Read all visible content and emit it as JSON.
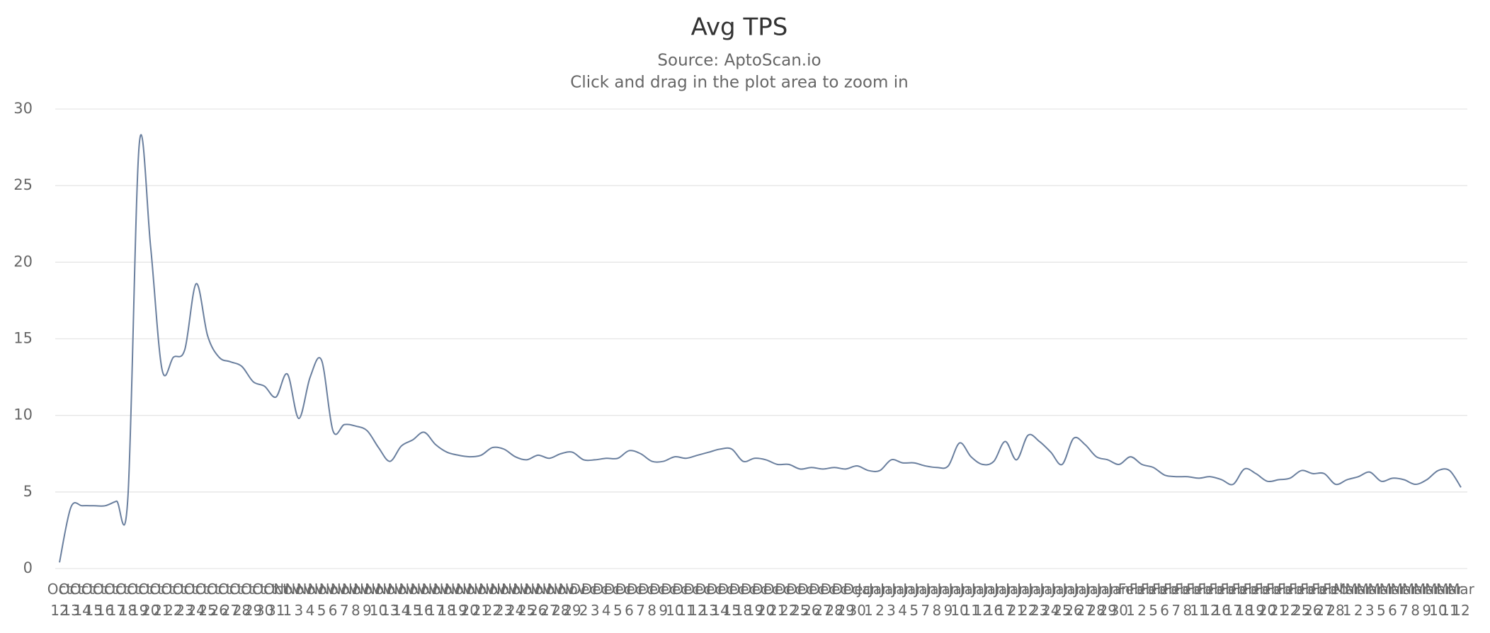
{
  "chart_data": {
    "type": "line",
    "title": "Avg TPS",
    "subtitle": "Source: AptoScan.io",
    "annotation": "Click and drag in the plot area to zoom in",
    "categories": [
      "Oct 12",
      "Oct 13",
      "Oct 14",
      "Oct 15",
      "Oct 16",
      "Oct 17",
      "Oct 18",
      "Oct 19",
      "Oct 20",
      "Oct 21",
      "Oct 22",
      "Oct 23",
      "Oct 24",
      "Oct 25",
      "Oct 26",
      "Oct 27",
      "Oct 28",
      "Oct 29",
      "Oct 30",
      "Oct 31",
      "Nov 1",
      "Nov 3",
      "Nov 4",
      "Nov 5",
      "Nov 6",
      "Nov 7",
      "Nov 8",
      "Nov 9",
      "Nov 10",
      "Nov 13",
      "Nov 14",
      "Nov 15",
      "Nov 16",
      "Nov 17",
      "Nov 18",
      "Nov 19",
      "Nov 20",
      "Nov 21",
      "Nov 22",
      "Nov 23",
      "Nov 24",
      "Nov 25",
      "Nov 26",
      "Nov 27",
      "Nov 28",
      "Nov 29",
      "Dec 2",
      "Dec 3",
      "Dec 4",
      "Dec 5",
      "Dec 6",
      "Dec 7",
      "Dec 8",
      "Dec 9",
      "Dec 10",
      "Dec 11",
      "Dec 12",
      "Dec 13",
      "Dec 14",
      "Dec 15",
      "Dec 18",
      "Dec 19",
      "Dec 20",
      "Dec 21",
      "Dec 22",
      "Dec 25",
      "Dec 26",
      "Dec 27",
      "Dec 28",
      "Dec 29",
      "Dec 30",
      "Jan 1",
      "Jan 2",
      "Jan 3",
      "Jan 4",
      "Jan 5",
      "Jan 7",
      "Jan 8",
      "Jan 9",
      "Jan 10",
      "Jan 11",
      "Jan 12",
      "Jan 16",
      "Jan 17",
      "Jan 21",
      "Jan 22",
      "Jan 23",
      "Jan 24",
      "Jan 25",
      "Jan 26",
      "Jan 27",
      "Jan 28",
      "Jan 29",
      "Jan 30",
      "Feb 1",
      "Feb 2",
      "Feb 5",
      "Feb 6",
      "Feb 7",
      "Feb 8",
      "Feb 11",
      "Feb 12",
      "Feb 16",
      "Feb 17",
      "Feb 18",
      "Feb 19",
      "Feb 20",
      "Feb 21",
      "Feb 22",
      "Feb 25",
      "Feb 26",
      "Feb 27",
      "Feb 28",
      "Mar 1",
      "Mar 2",
      "Mar 3",
      "Mar 5",
      "Mar 6",
      "Mar 7",
      "Mar 8",
      "Mar 9",
      "Mar 10",
      "Mar 11",
      "Mar 12"
    ],
    "series": [
      {
        "name": "Avg TPS",
        "color": "#6a7f9e",
        "values": [
          0.4,
          4,
          4.1,
          4.1,
          4.1,
          4.4,
          4.6,
          27.7,
          21,
          13,
          13.8,
          14.3,
          18.6,
          15.2,
          13.8,
          13.5,
          13.2,
          12.2,
          11.9,
          11.2,
          12.7,
          9.8,
          12.5,
          13.6,
          9.0,
          9.4,
          9.3,
          9.0,
          7.9,
          7.0,
          8.0,
          8.4,
          8.9,
          8.1,
          7.6,
          7.4,
          7.3,
          7.4,
          7.9,
          7.8,
          7.3,
          7.1,
          7.4,
          7.2,
          7.5,
          7.6,
          7.1,
          7.1,
          7.2,
          7.2,
          7.7,
          7.5,
          7.0,
          7.0,
          7.3,
          7.2,
          7.4,
          7.6,
          7.8,
          7.8,
          7.0,
          7.2,
          7.1,
          6.8,
          6.8,
          6.5,
          6.6,
          6.5,
          6.6,
          6.5,
          6.7,
          6.4,
          6.4,
          7.1,
          6.9,
          6.9,
          6.7,
          6.6,
          6.7,
          8.2,
          7.3,
          6.8,
          7.0,
          8.3,
          7.1,
          8.7,
          8.3,
          7.6,
          6.8,
          8.5,
          8.1,
          7.3,
          7.1,
          6.8,
          7.3,
          6.8,
          6.6,
          6.1,
          6.0,
          6.0,
          5.9,
          6.0,
          5.8,
          5.5,
          6.5,
          6.2,
          5.7,
          5.8,
          5.9,
          6.4,
          6.2,
          6.2,
          5.5,
          5.8,
          6.0,
          6.3,
          5.7,
          5.9,
          5.8,
          5.5,
          5.8,
          6.4,
          6.4,
          5.3
        ]
      }
    ],
    "ylim": [
      0,
      30
    ],
    "yticks": [
      0,
      5,
      10,
      15,
      20,
      25,
      30
    ],
    "grid": true
  }
}
